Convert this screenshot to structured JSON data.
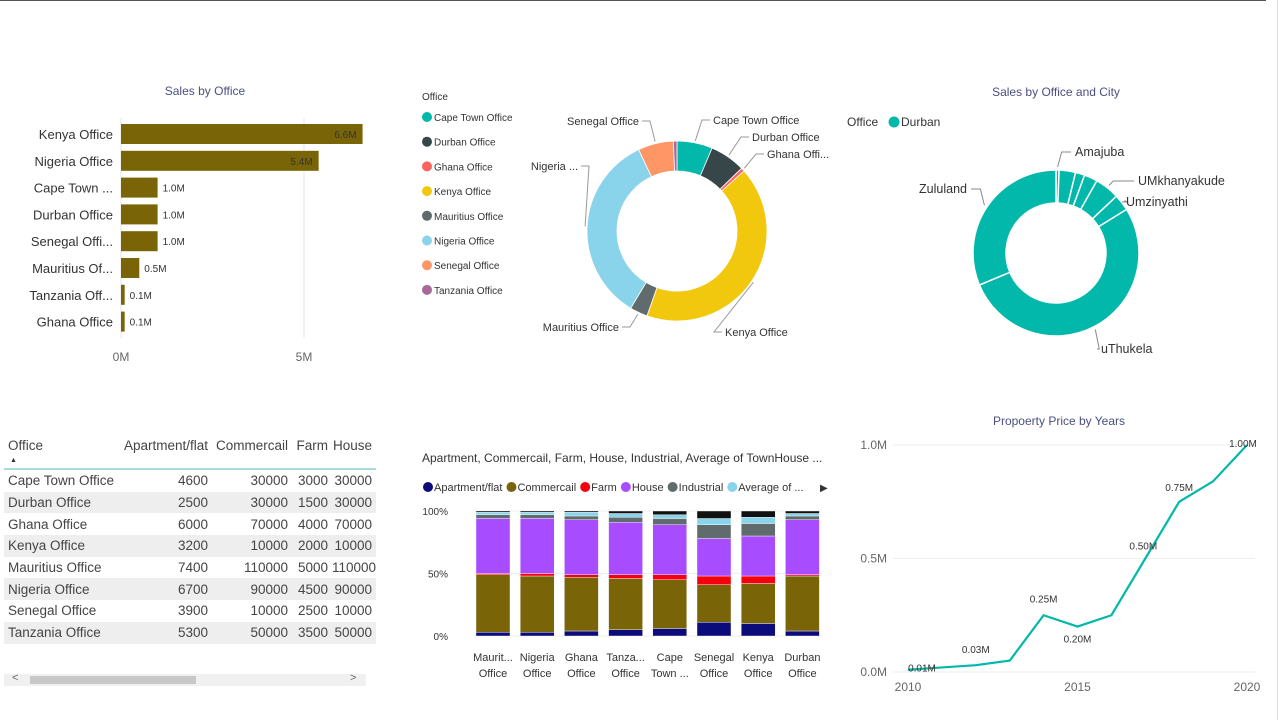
{
  "chart_data": [
    {
      "type": "bar",
      "orientation": "horizontal",
      "title": "Sales by Office",
      "categories": [
        "Kenya Office",
        "Nigeria Office",
        "Cape Town ...",
        "Durban Office",
        "Senegal Offi...",
        "Mauritius Of...",
        "Tanzania Off...",
        "Ghana Office"
      ],
      "values": [
        6.6,
        5.4,
        1.0,
        1.0,
        1.0,
        0.5,
        0.1,
        0.1
      ],
      "data_labels": [
        "6.6M",
        "5.4M",
        "1.0M",
        "1.0M",
        "1.0M",
        "0.5M",
        "0.1M",
        "0.1M"
      ],
      "xlim": [
        0,
        6.6
      ],
      "xticks": [
        {
          "v": 0,
          "label": "0M"
        },
        {
          "v": 5,
          "label": "5M"
        }
      ],
      "color": "#7a6408",
      "grid": true
    },
    {
      "type": "pie",
      "donut": true,
      "legend_title": "Office",
      "legend_position": "left",
      "slices": [
        {
          "label": "Cape Town Office",
          "value": 1.0,
          "color": "#01B8AA"
        },
        {
          "label": "Durban Office",
          "value": 1.0,
          "color": "#374649"
        },
        {
          "label": "Ghana Office",
          "value": 0.1,
          "color": "#FD625E",
          "callout": "Ghana Offi..."
        },
        {
          "label": "Kenya Office",
          "value": 6.6,
          "color": "#F2C80F"
        },
        {
          "label": "Mauritius Office",
          "value": 0.5,
          "color": "#5F6B6D"
        },
        {
          "label": "Nigeria Office",
          "value": 5.4,
          "color": "#8AD4EB",
          "callout": "Nigeria ..."
        },
        {
          "label": "Senegal Office",
          "value": 1.0,
          "color": "#FE9666"
        },
        {
          "label": "Tanzania Office",
          "value": 0.1,
          "color": "#A66999"
        }
      ]
    },
    {
      "type": "pie",
      "donut": true,
      "title": "Sales by Office and City",
      "legend_title": "Office",
      "legend_entries": [
        {
          "label": "Durban",
          "color": "#01B8AA"
        }
      ],
      "color": "#01B8AA",
      "slices": [
        {
          "label": "Amajuba",
          "value": 0.6
        },
        {
          "label": "",
          "value": 3.2
        },
        {
          "label": "",
          "value": 1.8
        },
        {
          "label": "",
          "value": 2.6
        },
        {
          "label": "UMkhanyakude",
          "value": 4.8
        },
        {
          "label": "Umzinyathi",
          "value": 3.2
        },
        {
          "label": "uThukela",
          "value": 52.5
        },
        {
          "label": "Zululand",
          "value": 31.3
        }
      ]
    },
    {
      "type": "bar",
      "stacked": "100%",
      "title": "Apartment, Commercail, Farm, House, Industrial, Average of TownHouse ...",
      "categories": [
        [
          "Maurit...",
          "Office"
        ],
        [
          "Nigeria",
          "Office"
        ],
        [
          "Ghana",
          "Office"
        ],
        [
          "Tanza...",
          "Office"
        ],
        [
          "Cape",
          "Town ..."
        ],
        [
          "Senegal",
          "Office"
        ],
        [
          "Kenya",
          "Office"
        ],
        [
          "Durban",
          "Office"
        ]
      ],
      "ylim": [
        0,
        100
      ],
      "yticks": [
        "0%",
        "50%",
        "100%"
      ],
      "legend_position": "top",
      "series": [
        {
          "name": "Apartment/flat",
          "color": "#0b0b7a",
          "values": [
            3,
            3,
            4,
            5,
            6,
            11,
            10,
            4
          ]
        },
        {
          "name": "Commercail",
          "color": "#7a6408",
          "values": [
            46,
            45,
            43,
            41,
            39,
            30,
            32,
            44
          ]
        },
        {
          "name": "Farm",
          "color": "#f5000f",
          "values": [
            1,
            2,
            2,
            3,
            4,
            7,
            6,
            1
          ]
        },
        {
          "name": "House",
          "color": "#a74dff",
          "values": [
            44,
            44,
            44,
            42,
            40,
            30,
            32,
            44
          ]
        },
        {
          "name": "Industrial",
          "color": "#5f6b6d",
          "values": [
            3,
            3,
            3,
            4,
            5,
            11,
            10,
            3
          ]
        },
        {
          "name": "Average of ...",
          "color": "#8ad4eb",
          "values": [
            2,
            2,
            3,
            3,
            3,
            5,
            5,
            2
          ]
        },
        {
          "color": "#111111",
          "values": [
            1,
            1,
            1,
            2,
            3,
            6,
            5,
            2
          ]
        }
      ]
    },
    {
      "type": "line",
      "title": "Propoerty Price by Years",
      "x": [
        2010,
        2011,
        2012,
        2013,
        2014,
        2015,
        2016,
        2017,
        2018,
        2019,
        2020
      ],
      "y": [
        0.01,
        0.02,
        0.03,
        0.05,
        0.25,
        0.2,
        0.25,
        0.5,
        0.75,
        0.84,
        1.0
      ],
      "data_labels": {
        "2010": "0.01M",
        "2012": "0.03M",
        "2014": "0.25M",
        "2015": "0.20M",
        "2017": "0.50M",
        "2018": "0.75M",
        "2020": "1.00M"
      },
      "xlim": [
        2010,
        2020
      ],
      "ylim": [
        0,
        1.0
      ],
      "xticks": [
        "2010",
        "2015",
        "2020"
      ],
      "yticks": [
        "0.0M",
        "0.5M",
        "1.0M"
      ],
      "color": "#01B8AA",
      "grid": true
    }
  ],
  "table": {
    "columns": [
      "Office",
      "Apartment/flat",
      "Commercail",
      "Farm",
      "House"
    ],
    "sort_indicator": "▲",
    "rows": [
      [
        "Cape Town Office",
        "4600",
        "30000",
        "3000",
        "30000"
      ],
      [
        "Durban Office",
        "2500",
        "30000",
        "1500",
        "30000"
      ],
      [
        "Ghana Office",
        "6000",
        "70000",
        "4000",
        "70000"
      ],
      [
        "Kenya Office",
        "3200",
        "10000",
        "2000",
        "10000"
      ],
      [
        "Mauritius Office",
        "7400",
        "110000",
        "5000",
        "110000"
      ],
      [
        "Nigeria Office",
        "6700",
        "90000",
        "4500",
        "90000"
      ],
      [
        "Senegal Office",
        "3900",
        "10000",
        "2500",
        "10000"
      ],
      [
        "Tanzania Office",
        "5300",
        "50000",
        "3500",
        "50000"
      ]
    ],
    "scroll_left": "<",
    "scroll_right": ">"
  },
  "legend_next": "▶"
}
